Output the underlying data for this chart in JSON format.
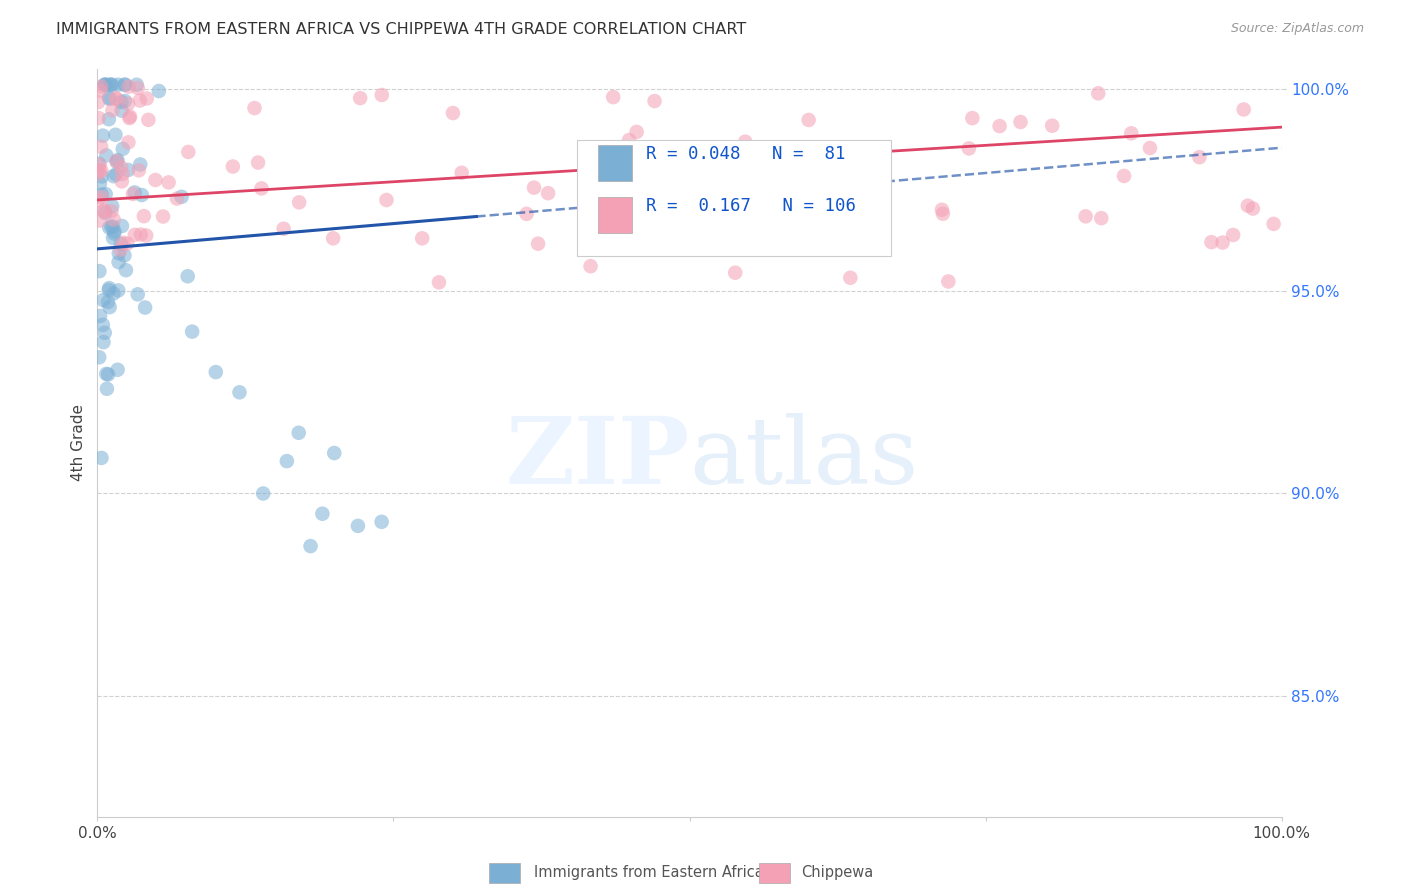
{
  "title": "IMMIGRANTS FROM EASTERN AFRICA VS CHIPPEWA 4TH GRADE CORRELATION CHART",
  "source": "Source: ZipAtlas.com",
  "ylabel": "4th Grade",
  "R_blue": 0.048,
  "N_blue": 81,
  "R_pink": 0.167,
  "N_pink": 106,
  "legend_labels": [
    "Immigrants from Eastern Africa",
    "Chippewa"
  ],
  "blue_color": "#7bafd4",
  "pink_color": "#f4a0b5",
  "blue_line_color": "#2255aa",
  "pink_line_color": "#dd4466",
  "xlim": [
    0.0,
    1.0
  ],
  "ylim": [
    0.82,
    1.005
  ],
  "watermark_zip": "ZIP",
  "watermark_atlas": "atlas",
  "background_color": "#ffffff",
  "blue_line_solid_end": 0.32,
  "blue_line_start_y": 0.97,
  "blue_line_end_y": 0.98,
  "pink_line_start_y": 0.978,
  "pink_line_end_y": 0.997
}
